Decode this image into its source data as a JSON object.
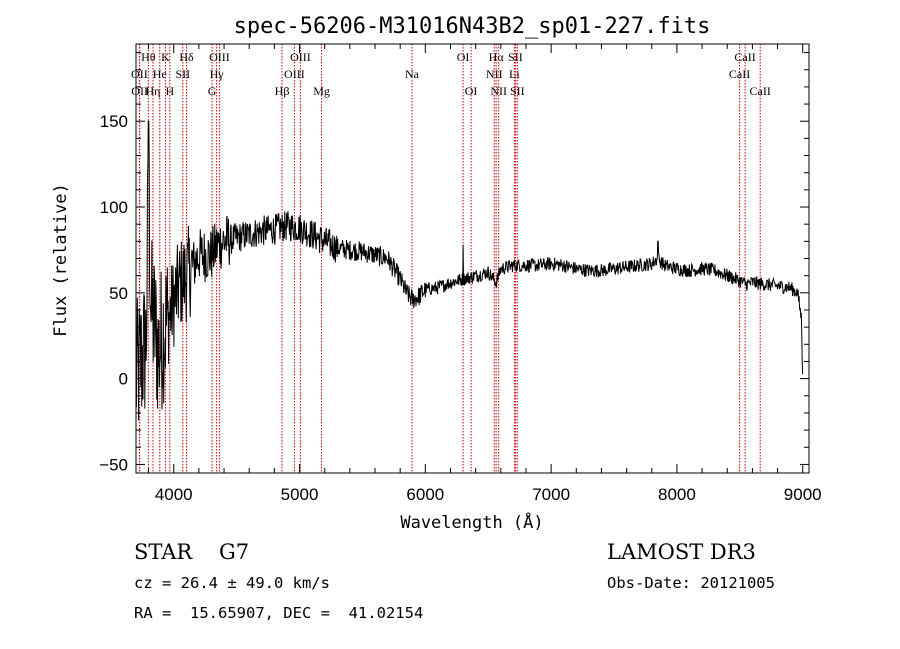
{
  "chart_data": {
    "type": "line",
    "title": "spec-56206-M31016N43B2_sp01-227.fits",
    "xlabel": "Wavelength (Å)",
    "ylabel": "Flux (relative)",
    "xlim": [
      3700,
      9050
    ],
    "ylim": [
      -55,
      195
    ],
    "xticks": [
      4000,
      5000,
      6000,
      7000,
      8000,
      9000
    ],
    "yticks": [
      -50,
      0,
      50,
      100,
      150
    ],
    "spectrum_anchors": [
      [
        3700,
        0
      ],
      [
        3740,
        10
      ],
      [
        3780,
        20
      ],
      [
        3800,
        120
      ],
      [
        3820,
        40
      ],
      [
        3850,
        30
      ],
      [
        3880,
        15
      ],
      [
        3920,
        30
      ],
      [
        3960,
        35
      ],
      [
        4000,
        45
      ],
      [
        4050,
        55
      ],
      [
        4100,
        60
      ],
      [
        4150,
        65
      ],
      [
        4200,
        72
      ],
      [
        4300,
        72
      ],
      [
        4350,
        78
      ],
      [
        4400,
        80
      ],
      [
        4500,
        82
      ],
      [
        4600,
        84
      ],
      [
        4700,
        86
      ],
      [
        4800,
        87
      ],
      [
        4900,
        89
      ],
      [
        5000,
        88
      ],
      [
        5100,
        84
      ],
      [
        5200,
        80
      ],
      [
        5300,
        76
      ],
      [
        5400,
        75
      ],
      [
        5500,
        74
      ],
      [
        5600,
        72
      ],
      [
        5700,
        70
      ],
      [
        5800,
        58
      ],
      [
        5850,
        50
      ],
      [
        5900,
        46
      ],
      [
        5950,
        48
      ],
      [
        6000,
        52
      ],
      [
        6100,
        53
      ],
      [
        6200,
        56
      ],
      [
        6300,
        58
      ],
      [
        6400,
        60
      ],
      [
        6500,
        62
      ],
      [
        6563,
        56
      ],
      [
        6600,
        64
      ],
      [
        6700,
        66
      ],
      [
        6800,
        66
      ],
      [
        6900,
        66
      ],
      [
        7000,
        67
      ],
      [
        7100,
        66
      ],
      [
        7200,
        64
      ],
      [
        7300,
        63
      ],
      [
        7400,
        63
      ],
      [
        7500,
        64
      ],
      [
        7600,
        65
      ],
      [
        7700,
        66
      ],
      [
        7800,
        67
      ],
      [
        7850,
        70
      ],
      [
        7900,
        66
      ],
      [
        8000,
        64
      ],
      [
        8100,
        63
      ],
      [
        8200,
        64
      ],
      [
        8300,
        63
      ],
      [
        8400,
        60
      ],
      [
        8500,
        57
      ],
      [
        8550,
        55
      ],
      [
        8600,
        56
      ],
      [
        8700,
        55
      ],
      [
        8800,
        54
      ],
      [
        8900,
        53
      ],
      [
        8960,
        50
      ],
      [
        8990,
        35
      ],
      [
        9000,
        2
      ]
    ],
    "noise_model": "pseudo-random scatter added to anchors; amplitude large below 4300 Å, small red-ward",
    "spectral_lines": [
      {
        "label": "Hθ",
        "x": 3798,
        "row": 1
      },
      {
        "label": "OII",
        "x": 3727,
        "row": 2
      },
      {
        "label": "OII",
        "x": 3729,
        "row": 3
      },
      {
        "label": "Hη",
        "x": 3835,
        "row": 3
      },
      {
        "label": "He",
        "x": 3889,
        "row": 2
      },
      {
        "label": "K",
        "x": 3934,
        "row": 1
      },
      {
        "label": "H",
        "x": 3969,
        "row": 3
      },
      {
        "label": "SII",
        "x": 4072,
        "row": 2
      },
      {
        "label": "Hδ",
        "x": 4102,
        "row": 1
      },
      {
        "label": "G",
        "x": 4305,
        "row": 3
      },
      {
        "label": "Hγ",
        "x": 4341,
        "row": 2
      },
      {
        "label": "OIII",
        "x": 4363,
        "row": 1
      },
      {
        "label": "Hβ",
        "x": 4861,
        "row": 3
      },
      {
        "label": "OIII",
        "x": 4959,
        "row": 2
      },
      {
        "label": "OIII",
        "x": 5007,
        "row": 1
      },
      {
        "label": "Mg",
        "x": 5175,
        "row": 3
      },
      {
        "label": "Na",
        "x": 5894,
        "row": 2
      },
      {
        "label": "OI",
        "x": 6300,
        "row": 1
      },
      {
        "label": "OI",
        "x": 6364,
        "row": 3
      },
      {
        "label": "NII",
        "x": 6548,
        "row": 2
      },
      {
        "label": "Hα",
        "x": 6563,
        "row": 1
      },
      {
        "label": "NII",
        "x": 6583,
        "row": 3
      },
      {
        "label": "Li",
        "x": 6708,
        "row": 2
      },
      {
        "label": "SII",
        "x": 6716,
        "row": 1
      },
      {
        "label": "SII",
        "x": 6731,
        "row": 3
      },
      {
        "label": "CaII",
        "x": 8498,
        "row": 2
      },
      {
        "label": "CaII",
        "x": 8542,
        "row": 1
      },
      {
        "label": "CaII",
        "x": 8662,
        "row": 3
      }
    ],
    "colors": {
      "spectrum": "#000000",
      "lines": "#cc0000",
      "axes": "#000000"
    }
  },
  "info": {
    "class": "STAR",
    "subclass": "G7",
    "survey": "LAMOST DR3",
    "cz": "cz = 26.4 ± 49.0 km/s",
    "obs_date": "Obs-Date: 20121005",
    "coords": "RA =  15.65907, DEC =  41.02154"
  }
}
